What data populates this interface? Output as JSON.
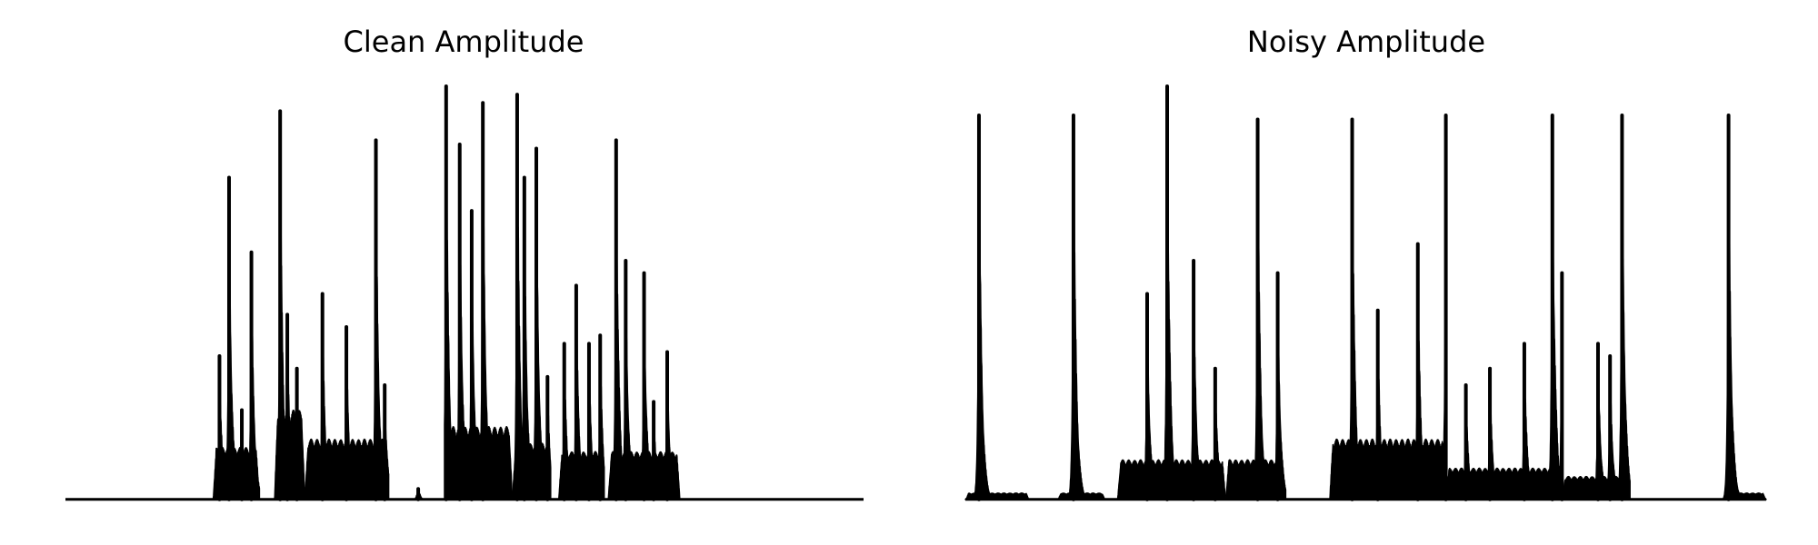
{
  "chart_data": [
    {
      "type": "area",
      "title": "Clean Amplitude",
      "x_range": [
        0,
        1000
      ],
      "ylim": [
        0,
        1.0
      ],
      "axes": "off",
      "grid": false,
      "color": "#000000",
      "baseline": 0.005,
      "segments": [
        {
          "start": 185,
          "end": 243,
          "level": 0.13,
          "peaks": [
            [
              193,
              0.35
            ],
            [
              205,
              0.78
            ],
            [
              221,
              0.22
            ],
            [
              233,
              0.6
            ]
          ]
        },
        {
          "start": 262,
          "end": 300,
          "level": 0.22,
          "peaks": [
            [
              269,
              0.94
            ],
            [
              278,
              0.45
            ],
            [
              290,
              0.32
            ]
          ]
        },
        {
          "start": 300,
          "end": 405,
          "level": 0.15,
          "peaks": [
            [
              322,
              0.5
            ],
            [
              352,
              0.42
            ],
            [
              389,
              0.87
            ],
            [
              400,
              0.28
            ]
          ]
        },
        {
          "start": 437,
          "end": 448,
          "level": 0.02,
          "peaks": [
            [
              442,
              0.03
            ]
          ]
        },
        {
          "start": 475,
          "end": 560,
          "level": 0.18,
          "peaks": [
            [
              477,
              1.0
            ],
            [
              494,
              0.86
            ],
            [
              509,
              0.7
            ],
            [
              523,
              0.96
            ]
          ]
        },
        {
          "start": 560,
          "end": 608,
          "level": 0.14,
          "peaks": [
            [
              566,
              0.98
            ],
            [
              575,
              0.78
            ],
            [
              590,
              0.85
            ],
            [
              604,
              0.3
            ]
          ]
        },
        {
          "start": 618,
          "end": 675,
          "level": 0.12,
          "peaks": [
            [
              625,
              0.38
            ],
            [
              640,
              0.52
            ],
            [
              656,
              0.38
            ],
            [
              670,
              0.4
            ]
          ]
        },
        {
          "start": 680,
          "end": 770,
          "level": 0.12,
          "peaks": [
            [
              690,
              0.87
            ],
            [
              702,
              0.58
            ],
            [
              725,
              0.55
            ],
            [
              737,
              0.24
            ],
            [
              754,
              0.36
            ]
          ]
        }
      ]
    },
    {
      "type": "area",
      "title": "Noisy Amplitude",
      "x_range": [
        0,
        1000
      ],
      "ylim": [
        0,
        1.0
      ],
      "axes": "off",
      "grid": false,
      "color": "#000000",
      "baseline": 0.005,
      "segments": [
        {
          "start": 0,
          "end": 80,
          "level": 0.02,
          "peaks": [
            [
              17,
              0.93
            ]
          ]
        },
        {
          "start": 115,
          "end": 175,
          "level": 0.02,
          "peaks": [
            [
              135,
              0.93
            ]
          ]
        },
        {
          "start": 190,
          "end": 325,
          "level": 0.1,
          "peaks": [
            [
              227,
              0.5
            ],
            [
              252,
              1.0
            ],
            [
              285,
              0.58
            ],
            [
              312,
              0.32
            ]
          ]
        },
        {
          "start": 325,
          "end": 400,
          "level": 0.1,
          "peaks": [
            [
              365,
              0.92
            ],
            [
              390,
              0.55
            ]
          ]
        },
        {
          "start": 455,
          "end": 600,
          "level": 0.15,
          "peaks": [
            [
              483,
              0.92
            ],
            [
              515,
              0.46
            ],
            [
              565,
              0.62
            ],
            [
              600,
              0.93
            ]
          ]
        },
        {
          "start": 600,
          "end": 745,
          "level": 0.08,
          "peaks": [
            [
              625,
              0.28
            ],
            [
              655,
              0.32
            ],
            [
              698,
              0.38
            ],
            [
              733,
              0.93
            ],
            [
              745,
              0.55
            ]
          ]
        },
        {
          "start": 745,
          "end": 830,
          "level": 0.06,
          "peaks": [
            [
              790,
              0.38
            ],
            [
              805,
              0.35
            ],
            [
              820,
              0.93
            ]
          ]
        },
        {
          "start": 945,
          "end": 1000,
          "level": 0.02,
          "peaks": [
            [
              953,
              0.93
            ]
          ]
        }
      ]
    }
  ]
}
